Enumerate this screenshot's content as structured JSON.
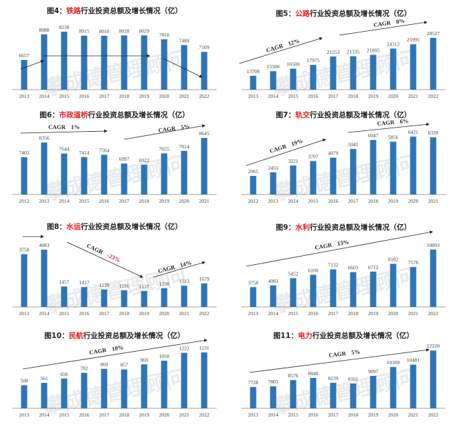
{
  "watermark": "攀成德管理顾问",
  "colors": {
    "bar": "#2e75b6",
    "highlight": "#e0201c",
    "axis": "#7f7f7f",
    "arrow": "#222222"
  },
  "chart_data": [
    {
      "type": "bar",
      "title": {
        "prefix": "图4：",
        "highlight": "铁路",
        "suffix": "行业投资总额及增长情况（亿）"
      },
      "categories": [
        "2013",
        "2014",
        "2015",
        "2016",
        "2017",
        "2018",
        "2019",
        "2020",
        "2021",
        "2022"
      ],
      "values": [
        6657,
        8088,
        8238,
        8015,
        8010,
        8028,
        8029,
        7810,
        7489,
        7109
      ],
      "ylim": [
        5000,
        8850
      ],
      "annotations": []
    },
    {
      "type": "bar",
      "title": {
        "prefix": "图5：",
        "highlight": "公路",
        "suffix": "行业投资总额及增长情况（亿）"
      },
      "categories": [
        "2013",
        "2014",
        "2015",
        "2016",
        "2017",
        "2018",
        "2019",
        "2020",
        "2021",
        "2022"
      ],
      "values": [
        13700,
        15500,
        16500,
        17975,
        21253,
        21335,
        21895,
        24312,
        25995,
        28527
      ],
      "ylim": [
        8300,
        35200
      ],
      "annotations": [
        {
          "label": "CAGR",
          "value": "12%"
        },
        {
          "label": "CAGR",
          "value": "8%"
        }
      ]
    },
    {
      "type": "bar",
      "title": {
        "prefix": "图6：",
        "highlight": "市政道桥",
        "suffix": "行业投资总额及增长情况（亿）"
      },
      "categories": [
        "2012",
        "2013",
        "2014",
        "2015",
        "2016",
        "2017",
        "2018",
        "2019",
        "2020",
        "2021"
      ],
      "values": [
        7403,
        8356,
        7644,
        7414,
        7564,
        6997,
        6922,
        7655,
        7814,
        8645
      ],
      "ylim": [
        5000,
        9450
      ],
      "annotations": [
        {
          "label": "CAGR",
          "value": "1%"
        },
        {
          "label": "CAGR",
          "value": "5%"
        }
      ]
    },
    {
      "type": "bar",
      "title": {
        "prefix": "图7：",
        "highlight": "轨交",
        "suffix": "行业投资总额及增长情况（亿）"
      },
      "categories": [
        "2012",
        "2013",
        "2014",
        "2015",
        "2016",
        "2017",
        "2018",
        "2019",
        "2020",
        "2021"
      ],
      "values": [
        2065,
        2455,
        3221,
        3707,
        4079,
        5045,
        6047,
        5856,
        6421,
        6339
      ],
      "ylim": [
        0,
        7650
      ],
      "annotations": [
        {
          "label": "CAGR",
          "value": "19%"
        },
        {
          "label": "CAGR",
          "value": "6%"
        }
      ]
    },
    {
      "type": "bar",
      "title": {
        "prefix": "图8：",
        "highlight": "水运",
        "suffix": "行业投资总额及增长情况（亿）"
      },
      "categories": [
        "2013",
        "2014",
        "2015",
        "2016",
        "2017",
        "2018",
        "2019",
        "2020",
        "2021",
        "2022"
      ],
      "values": [
        3758,
        4083,
        1457,
        1417,
        1239,
        1191,
        1137,
        1330,
        1513,
        1679
      ],
      "ylim": [
        0,
        4920
      ],
      "annotations": [
        {
          "label": "CAGR",
          "value": "-23%",
          "negative": true
        },
        {
          "label": "CAGR",
          "value": "14%"
        }
      ]
    },
    {
      "type": "bar",
      "title": {
        "prefix": "图9：",
        "highlight": "水利",
        "suffix": "行业投资总额及增长情况（亿）"
      },
      "categories": [
        "2013",
        "2014",
        "2015",
        "2016",
        "2017",
        "2018",
        "2019",
        "2020",
        "2021",
        "2022"
      ],
      "values": [
        3758,
        4083,
        5452,
        6100,
        7132,
        6603,
        6712,
        8182,
        7576,
        10893
      ],
      "ylim": [
        0,
        13100
      ],
      "annotations": [
        {
          "label": "CAGR",
          "value": "13%"
        }
      ]
    },
    {
      "type": "bar",
      "title": {
        "prefix": "图10：",
        "highlight": "民航",
        "suffix": "行业投资总额及增长情况（亿）"
      },
      "categories": [
        "2013",
        "2014",
        "2015",
        "2016",
        "2017",
        "2018",
        "2019",
        "2020",
        "2021",
        "2022"
      ],
      "values": [
        508,
        561,
        656,
        782,
        869,
        857,
        969,
        1050,
        1222,
        1231
      ],
      "ylim": [
        0,
        1520
      ],
      "annotations": [
        {
          "label": "CAGR",
          "value": "10%"
        }
      ]
    },
    {
      "type": "bar",
      "title": {
        "prefix": "图11：",
        "highlight": "电力",
        "suffix": "行业投资总额及增长情况（亿）"
      },
      "categories": [
        "2013",
        "2014",
        "2015",
        "2016",
        "2017",
        "2018",
        "2019",
        "2020",
        "2021",
        "2022"
      ],
      "values": [
        7728,
        7805,
        8576,
        8840,
        8239,
        8161,
        9097,
        10189,
        10481,
        12220
      ],
      "ylim": [
        5100,
        13600
      ],
      "annotations": [
        {
          "label": "CAGR",
          "value": "5%"
        }
      ]
    }
  ]
}
